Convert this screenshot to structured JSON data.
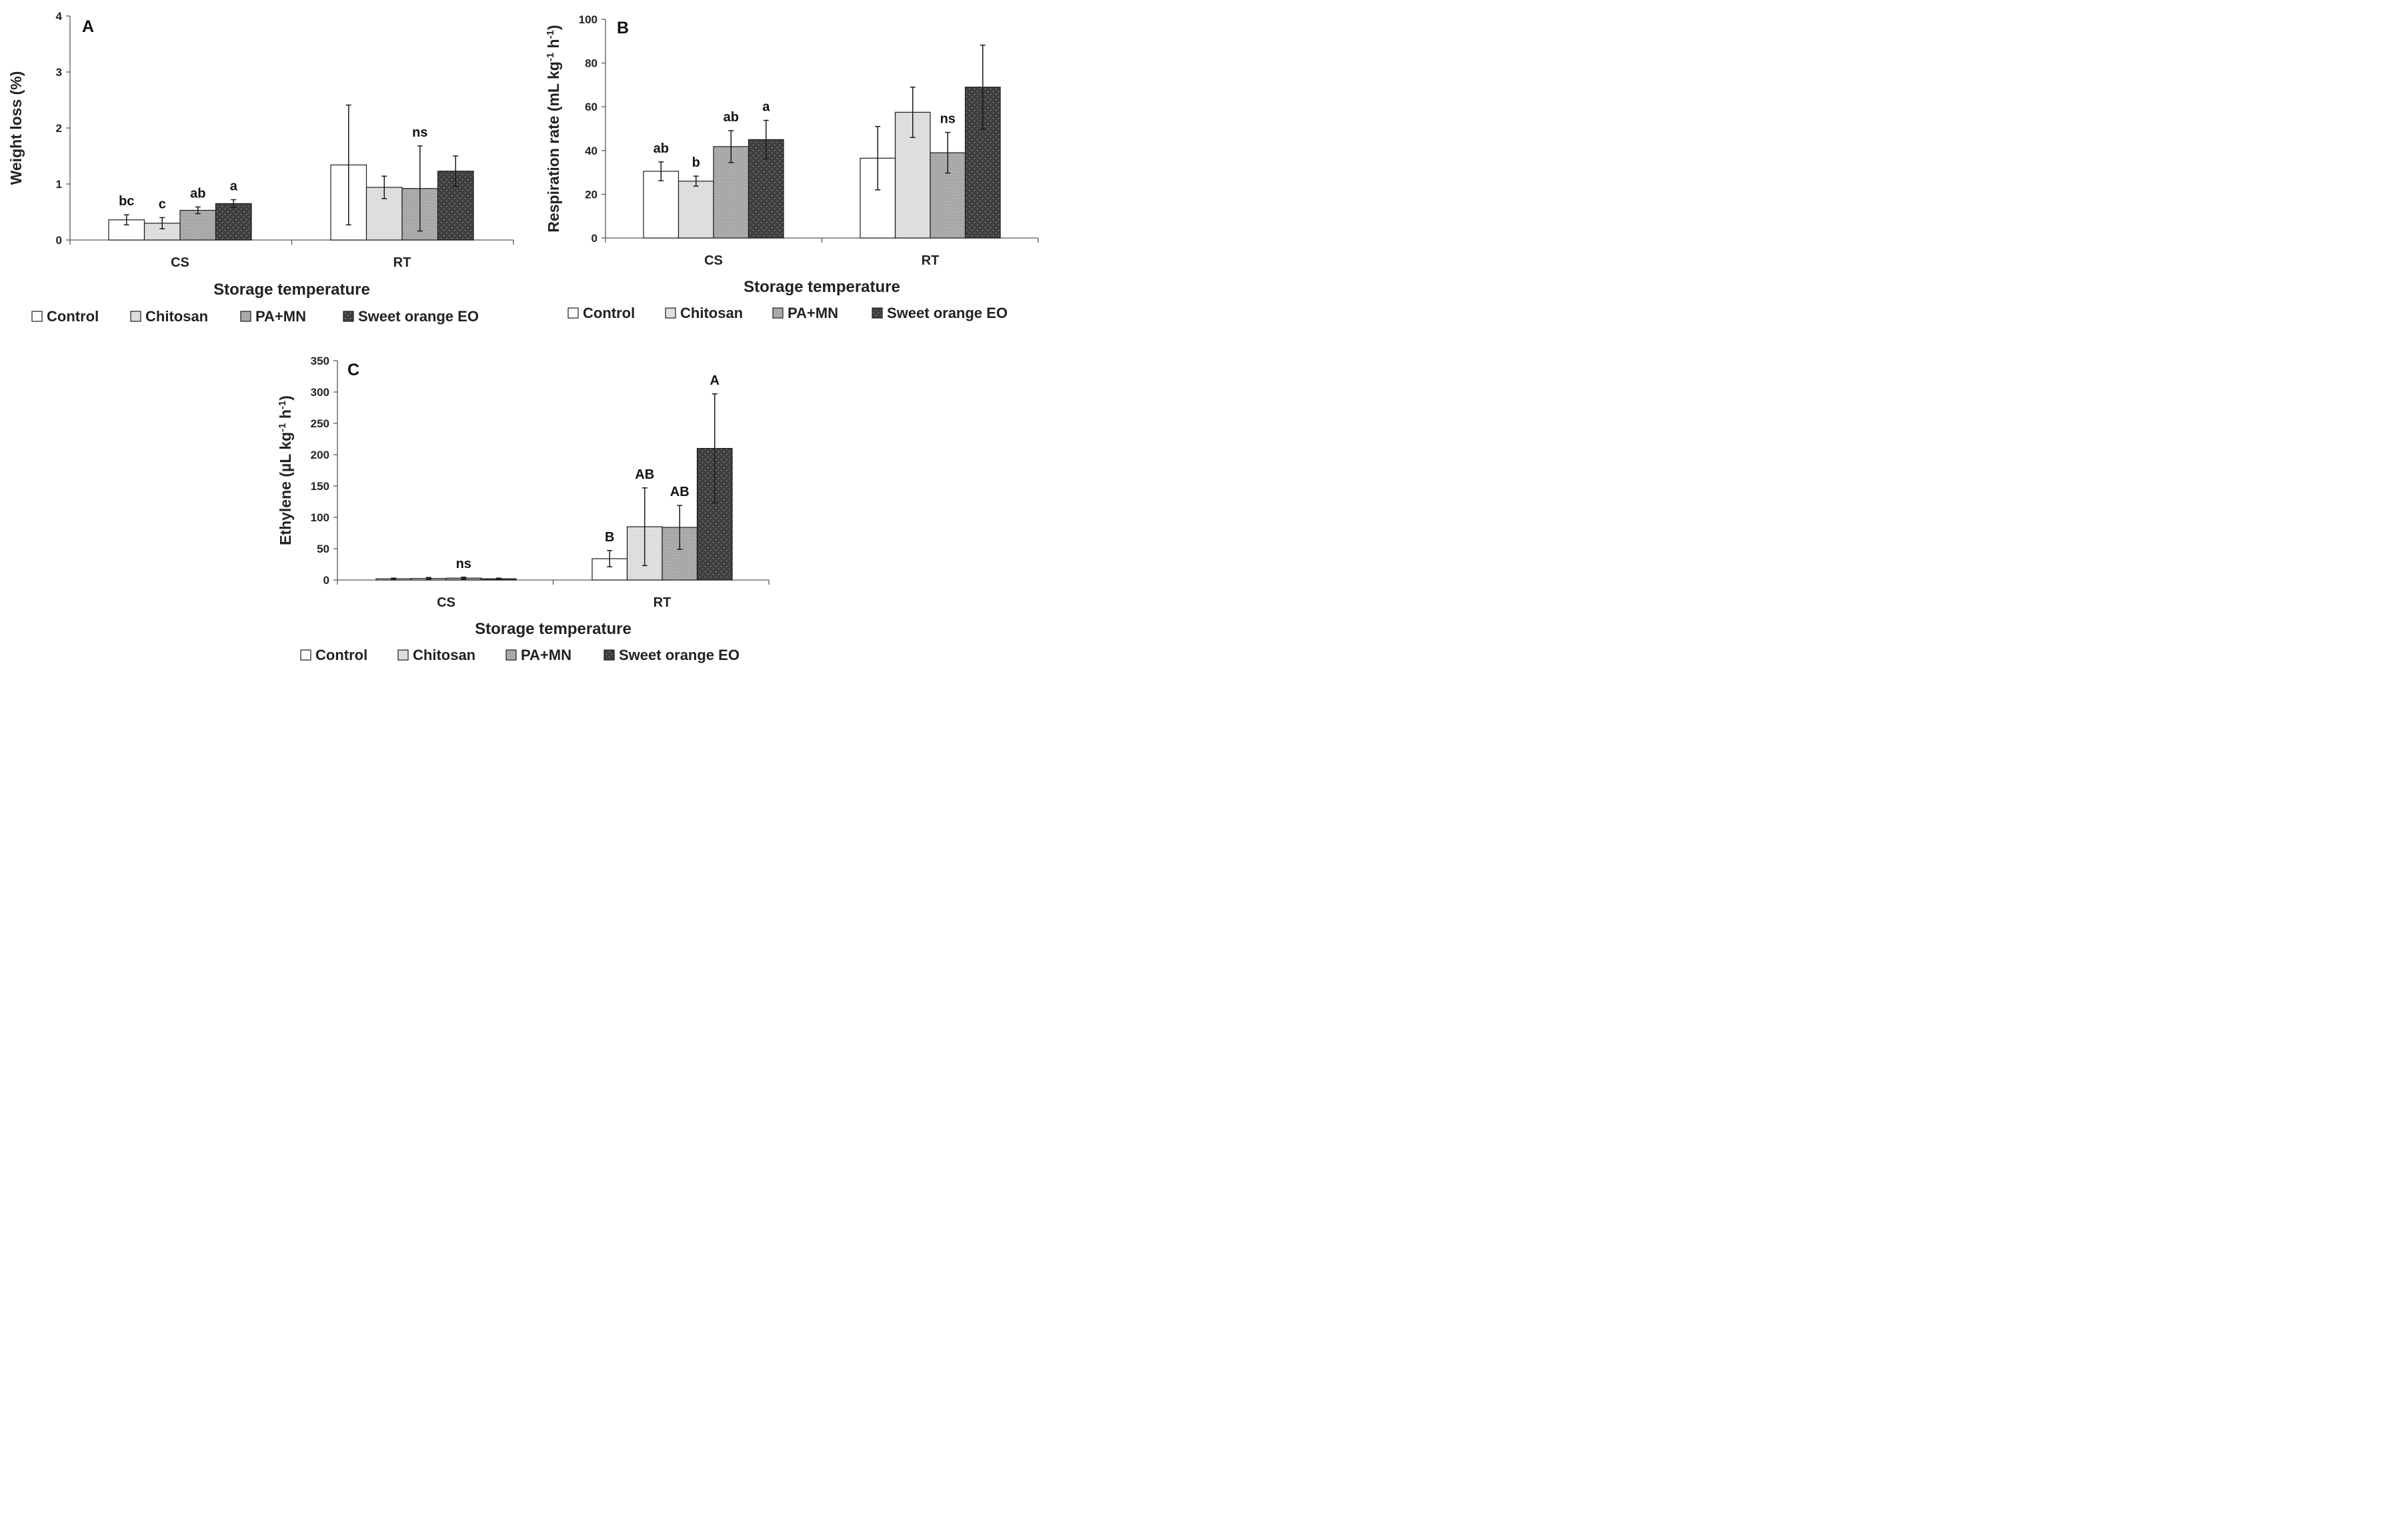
{
  "colors": {
    "control": "#ffffff",
    "chitosan": "#d9d9d9",
    "pamn": "#a6a6a6",
    "sweet_orange": "#404040"
  },
  "legend": [
    "Control",
    "Chitosan",
    "PA+MN",
    "Sweet orange EO"
  ],
  "chart_data": [
    {
      "panel": "A",
      "type": "bar",
      "categories": [
        "CS",
        "RT"
      ],
      "xlabel": "Storage temperature",
      "ylabel": "Weight loss (%)",
      "ylim": [
        0,
        4
      ],
      "yticks": [
        0,
        1,
        2,
        3,
        4
      ],
      "series": [
        {
          "name": "Control",
          "values": [
            0.36,
            1.34
          ],
          "errors": [
            0.09,
            1.07
          ]
        },
        {
          "name": "Chitosan",
          "values": [
            0.3,
            0.94
          ],
          "errors": [
            0.1,
            0.2
          ]
        },
        {
          "name": "PA+MN",
          "values": [
            0.53,
            0.92
          ],
          "errors": [
            0.06,
            0.76
          ]
        },
        {
          "name": "Sweet orange EO",
          "values": [
            0.65,
            1.23
          ],
          "errors": [
            0.07,
            0.27
          ]
        }
      ],
      "annotations": [
        {
          "category": "CS",
          "series": "Control",
          "text": "bc"
        },
        {
          "category": "CS",
          "series": "Chitosan",
          "text": "c"
        },
        {
          "category": "CS",
          "series": "PA+MN",
          "text": "ab"
        },
        {
          "category": "CS",
          "series": "Sweet orange EO",
          "text": "a"
        },
        {
          "category": "RT",
          "series": "PA+MN",
          "text": "ns"
        }
      ]
    },
    {
      "panel": "B",
      "type": "bar",
      "categories": [
        "CS",
        "RT"
      ],
      "xlabel": "Storage temperature",
      "ylabel_parts": [
        "Respiration rate (mL kg",
        "-1",
        " h",
        "-1",
        ")"
      ],
      "ylim": [
        0,
        100
      ],
      "yticks": [
        0,
        20,
        40,
        60,
        80,
        100
      ],
      "series": [
        {
          "name": "Control",
          "values": [
            30.5,
            36.5
          ],
          "errors": [
            4.3,
            14.5
          ]
        },
        {
          "name": "Chitosan",
          "values": [
            26,
            57.5
          ],
          "errors": [
            2.3,
            11.5
          ]
        },
        {
          "name": "PA+MN",
          "values": [
            41.8,
            39
          ],
          "errors": [
            7.3,
            9.3
          ]
        },
        {
          "name": "Sweet orange EO",
          "values": [
            45,
            69
          ],
          "errors": [
            8.8,
            19.2
          ]
        }
      ],
      "annotations": [
        {
          "category": "CS",
          "series": "Control",
          "text": "ab"
        },
        {
          "category": "CS",
          "series": "Chitosan",
          "text": "b"
        },
        {
          "category": "CS",
          "series": "PA+MN",
          "text": "ab"
        },
        {
          "category": "CS",
          "series": "Sweet orange EO",
          "text": "a"
        },
        {
          "category": "RT",
          "series": "PA+MN",
          "text": "ns"
        }
      ]
    },
    {
      "panel": "C",
      "type": "bar",
      "categories": [
        "CS",
        "RT"
      ],
      "xlabel": "Storage temperature",
      "ylabel_parts": [
        "Ethylene (µL kg",
        "-1",
        " h",
        "-1",
        ")"
      ],
      "ylim": [
        0,
        350
      ],
      "yticks": [
        0,
        50,
        100,
        150,
        200,
        250,
        300,
        350
      ],
      "series": [
        {
          "name": "Control",
          "values": [
            2,
            34
          ],
          "errors": [
            1,
            13
          ]
        },
        {
          "name": "Chitosan",
          "values": [
            2.5,
            85
          ],
          "errors": [
            1.5,
            62
          ]
        },
        {
          "name": "PA+MN",
          "values": [
            3,
            84
          ],
          "errors": [
            1.5,
            35
          ]
        },
        {
          "name": "Sweet orange EO",
          "values": [
            2,
            210
          ],
          "errors": [
            1,
            87
          ]
        }
      ],
      "annotations": [
        {
          "category": "CS",
          "series": "PA+MN",
          "text": "ns"
        },
        {
          "category": "RT",
          "series": "Control",
          "text": "B"
        },
        {
          "category": "RT",
          "series": "Chitosan",
          "text": "AB"
        },
        {
          "category": "RT",
          "series": "PA+MN",
          "text": "AB"
        },
        {
          "category": "RT",
          "series": "Sweet orange EO",
          "text": "A"
        }
      ]
    }
  ]
}
